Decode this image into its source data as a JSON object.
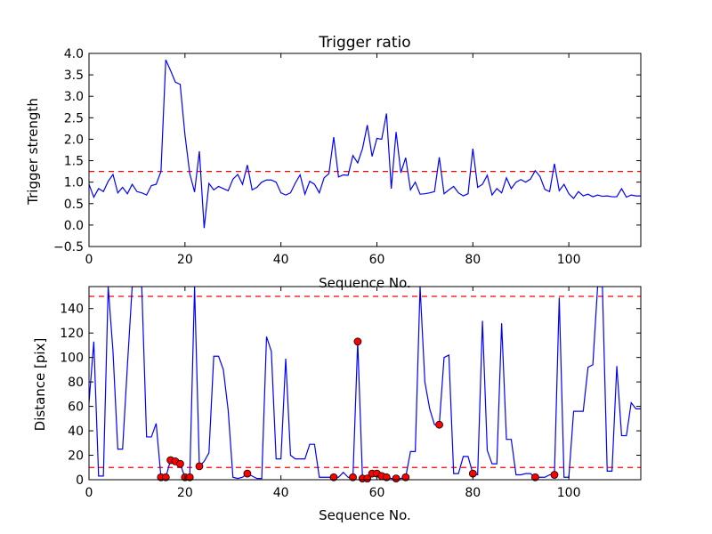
{
  "chart_data": [
    {
      "type": "line",
      "title": "Trigger ratio",
      "xlabel": "Sequence No.",
      "ylabel": "Trigger strength",
      "xlim": [
        0,
        115
      ],
      "ylim": [
        -0.5,
        4.0
      ],
      "xticks": [
        "0",
        "20",
        "40",
        "60",
        "80",
        "100"
      ],
      "yticks": [
        "−0.5",
        "0.0",
        "0.5",
        "1.0",
        "1.5",
        "2.0",
        "2.5",
        "3.0",
        "3.5",
        "4.0"
      ],
      "grid": false,
      "threshold": 1.25,
      "series": [
        {
          "color": "#0000ff",
          "x": [
            0,
            1,
            2,
            3,
            4,
            5,
            6,
            7,
            8,
            9,
            10,
            11,
            12,
            13,
            14,
            15,
            16,
            17,
            18,
            19,
            20,
            21,
            22,
            23,
            24,
            25,
            26,
            27,
            28,
            29,
            30,
            31,
            32,
            33,
            34,
            35,
            36,
            37,
            38,
            39,
            40,
            41,
            42,
            43,
            44,
            45,
            46,
            47,
            48,
            49,
            50,
            51,
            52,
            53,
            54,
            55,
            56,
            57,
            58,
            59,
            60,
            61,
            62,
            63,
            64,
            65,
            66,
            67,
            68,
            69,
            70,
            71,
            72,
            73,
            74,
            75,
            76,
            77,
            78,
            79,
            80,
            81,
            82,
            83,
            84,
            85,
            86,
            87,
            88,
            89,
            90,
            91,
            92,
            93,
            94,
            95,
            96,
            97,
            98,
            99,
            100,
            101,
            102,
            103,
            104,
            105,
            106,
            107,
            108,
            109,
            110,
            111,
            112,
            113,
            114,
            115
          ],
          "y": [
            0.95,
            0.65,
            0.85,
            0.78,
            1.02,
            1.18,
            0.75,
            0.88,
            0.73,
            0.95,
            0.78,
            0.75,
            0.7,
            0.92,
            0.95,
            1.25,
            3.85,
            3.6,
            3.33,
            3.28,
            2.1,
            1.2,
            0.77,
            1.72,
            -0.07,
            0.97,
            0.82,
            0.9,
            0.85,
            0.8,
            1.07,
            1.18,
            0.95,
            1.4,
            0.82,
            0.88,
            1.0,
            1.05,
            1.05,
            1.0,
            0.75,
            0.7,
            0.75,
            0.98,
            1.17,
            0.72,
            1.02,
            0.95,
            0.75,
            1.1,
            1.2,
            2.05,
            1.12,
            1.17,
            1.16,
            1.62,
            1.45,
            1.78,
            2.33,
            1.6,
            2.02,
            2.0,
            2.6,
            0.85,
            2.17,
            1.22,
            1.57,
            0.82,
            1.0,
            0.72,
            0.73,
            0.75,
            0.78,
            1.58,
            0.73,
            0.82,
            0.9,
            0.75,
            0.68,
            0.73,
            1.78,
            0.88,
            0.95,
            1.16,
            0.7,
            0.85,
            0.75,
            1.1,
            0.85,
            1.0,
            1.06,
            1.0,
            1.07,
            1.27,
            1.13,
            0.83,
            0.78,
            1.43,
            0.8,
            0.95,
            0.73,
            0.62,
            0.78,
            0.68,
            0.72,
            0.66,
            0.7,
            0.67,
            0.68,
            0.66,
            0.66,
            0.85,
            0.65,
            0.7,
            0.68,
            0.68
          ]
        }
      ]
    },
    {
      "type": "line",
      "title": "",
      "xlabel": "Sequence No.",
      "ylabel": "Distance [pix]",
      "xlim": [
        0,
        115
      ],
      "ylim": [
        0,
        158
      ],
      "xticks": [
        "0",
        "20",
        "40",
        "60",
        "80",
        "100"
      ],
      "yticks": [
        "0",
        "20",
        "40",
        "60",
        "80",
        "100",
        "120",
        "140"
      ],
      "grid": false,
      "thresholds": [
        10,
        150
      ],
      "series": [
        {
          "color": "#0000ff",
          "x": [
            0,
            1,
            2,
            3,
            4,
            5,
            6,
            7,
            8,
            9,
            10,
            11,
            12,
            13,
            14,
            15,
            16,
            17,
            18,
            19,
            20,
            21,
            22,
            23,
            24,
            25,
            26,
            27,
            28,
            29,
            30,
            31,
            32,
            33,
            34,
            35,
            36,
            37,
            38,
            39,
            40,
            41,
            42,
            43,
            44,
            45,
            46,
            47,
            48,
            49,
            50,
            51,
            52,
            53,
            54,
            55,
            56,
            57,
            58,
            59,
            60,
            61,
            62,
            63,
            64,
            65,
            66,
            67,
            68,
            69,
            70,
            71,
            72,
            73,
            74,
            75,
            76,
            77,
            78,
            79,
            80,
            81,
            82,
            83,
            84,
            85,
            86,
            87,
            88,
            89,
            90,
            91,
            92,
            93,
            94,
            95,
            96,
            97,
            98,
            99,
            100,
            101,
            102,
            103,
            104,
            105,
            106,
            107,
            108,
            109,
            110,
            111,
            112,
            113,
            114,
            115
          ],
          "y": [
            63,
            113,
            3,
            3,
            158,
            105,
            25,
            25,
            93,
            158,
            158,
            158,
            35,
            35,
            46,
            2,
            2,
            16,
            15,
            13,
            2,
            2,
            158,
            11,
            15,
            22,
            101,
            101,
            90,
            57,
            2,
            1,
            2,
            5,
            3,
            1,
            1,
            117,
            105,
            17,
            17,
            99,
            20,
            17,
            17,
            17,
            29,
            29,
            2,
            2,
            2,
            2,
            2,
            6,
            2,
            1,
            113,
            1,
            1,
            5,
            5,
            3,
            2,
            1,
            1,
            1,
            2,
            23,
            23,
            158,
            80,
            58,
            45,
            45,
            100,
            102,
            5,
            5,
            19,
            19,
            5,
            4,
            130,
            24,
            13,
            13,
            128,
            33,
            33,
            4,
            4,
            5,
            5,
            2,
            2,
            2,
            4,
            4,
            149,
            2,
            2,
            56,
            56,
            56,
            92,
            94,
            158,
            158,
            7,
            7,
            93,
            36,
            36,
            63,
            58,
            58
          ]
        }
      ],
      "markers": {
        "color": "#ff0000",
        "points": [
          [
            15,
            2
          ],
          [
            16,
            2
          ],
          [
            17,
            16
          ],
          [
            18,
            15
          ],
          [
            19,
            13
          ],
          [
            20,
            2
          ],
          [
            21,
            2
          ],
          [
            23,
            11
          ],
          [
            33,
            5
          ],
          [
            51,
            2
          ],
          [
            55,
            2
          ],
          [
            56,
            113
          ],
          [
            57,
            1
          ],
          [
            58,
            1
          ],
          [
            59,
            5
          ],
          [
            60,
            5
          ],
          [
            61,
            3
          ],
          [
            62,
            2
          ],
          [
            64,
            1
          ],
          [
            66,
            2
          ],
          [
            73,
            45
          ],
          [
            80,
            5
          ],
          [
            93,
            2
          ],
          [
            97,
            4
          ]
        ]
      }
    }
  ]
}
